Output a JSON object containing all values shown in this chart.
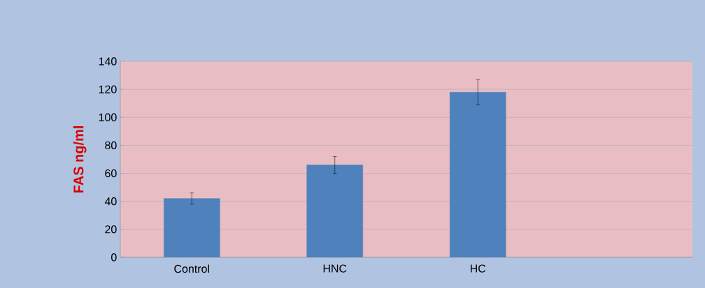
{
  "chart_data": {
    "type": "bar",
    "ylabel": "FAS ng/ml",
    "categories": [
      "Control",
      "HNC",
      "HC",
      null
    ],
    "values": [
      42,
      66,
      118,
      null
    ],
    "errors": [
      4,
      6,
      9,
      null
    ],
    "color": "#4f81bd",
    "ylim": [
      0,
      140
    ],
    "yticks": [
      0,
      20,
      40,
      60,
      80,
      100,
      120,
      140
    ],
    "grid": "y"
  }
}
